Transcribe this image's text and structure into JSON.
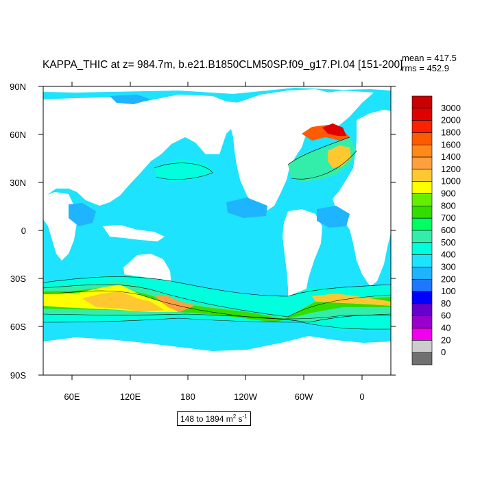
{
  "title": "KAPPA_THIC at z= 984.7m, b.e21.B1850CLM50SP.f09_g17.PI.04 [151-200]",
  "stats": {
    "mean": "mean = 417.5",
    "rms": "rms = 452.9"
  },
  "range_label": {
    "text": "148 to 1894 m",
    "unit_sup_1": "2",
    "unit_mid": " s",
    "unit_sup_2": "-1"
  },
  "y_ticks": [
    "90N",
    "60N",
    "30N",
    "0",
    "30S",
    "60S",
    "90S"
  ],
  "x_ticks": [
    "60E",
    "120E",
    "180",
    "120W",
    "60W",
    "0"
  ],
  "colorbar": {
    "labels": [
      "3000",
      "2000",
      "1800",
      "1600",
      "1400",
      "1200",
      "1000",
      "900",
      "800",
      "700",
      "600",
      "500",
      "400",
      "300",
      "200",
      "100",
      "80",
      "60",
      "40",
      "20",
      "0"
    ],
    "colors": [
      "#c80000",
      "#e00000",
      "#ff2000",
      "#ff5a00",
      "#ff8a1a",
      "#ffa040",
      "#ffc830",
      "#ffff00",
      "#66ee00",
      "#33dd00",
      "#00ff60",
      "#33eeaa",
      "#00ffdd",
      "#1ee3ff",
      "#1eb4ff",
      "#1e78ff",
      "#0000ff",
      "#6600cc",
      "#9900cc",
      "#ee00ee",
      "#cccccc",
      "#707070"
    ]
  },
  "chart_data": {
    "type": "map",
    "title": "KAPPA_THIC at z= 984.7m, b.e21.B1850CLM50SP.f09_g17.PI.04 [151-200]",
    "xlim": [
      30,
      390
    ],
    "ylim": [
      -90,
      90
    ],
    "x_ticks": [
      "60E",
      "120E",
      "180",
      "120W",
      "60W",
      "0"
    ],
    "y_ticks": [
      "90N",
      "60N",
      "30N",
      "0",
      "30S",
      "60S",
      "90S"
    ],
    "colorbar_levels": [
      0,
      20,
      40,
      60,
      80,
      100,
      200,
      300,
      400,
      500,
      600,
      700,
      800,
      900,
      1000,
      1200,
      1400,
      1600,
      1800,
      2000,
      3000
    ],
    "data_range": [
      148,
      1894
    ],
    "mean": 417.5,
    "rms": 452.9
  }
}
